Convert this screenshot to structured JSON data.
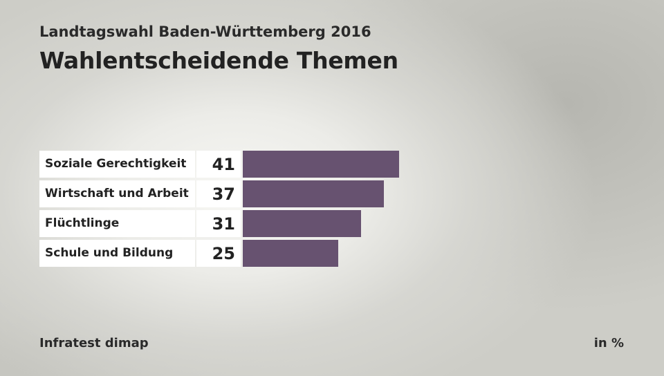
{
  "header": {
    "subtitle": "Landtagswahl Baden-Württemberg 2016",
    "title": "Wahlentscheidende Themen"
  },
  "footer": {
    "source": "Infratest dimap",
    "unit": "in %"
  },
  "colors": {
    "bar": "#675270",
    "label_bg": "#ffffff"
  },
  "chart_data": {
    "type": "bar",
    "orientation": "horizontal",
    "title": "Wahlentscheidende Themen",
    "subtitle": "Landtagswahl Baden-Württemberg 2016",
    "unit": "in %",
    "categories": [
      "Soziale Gerechtigkeit",
      "Wirtschaft und Arbeit",
      "Flüchtlinge",
      "Schule und Bildung"
    ],
    "values": [
      41,
      37,
      31,
      25
    ],
    "xlim": [
      0,
      41
    ],
    "grid": false,
    "legend": "none"
  }
}
